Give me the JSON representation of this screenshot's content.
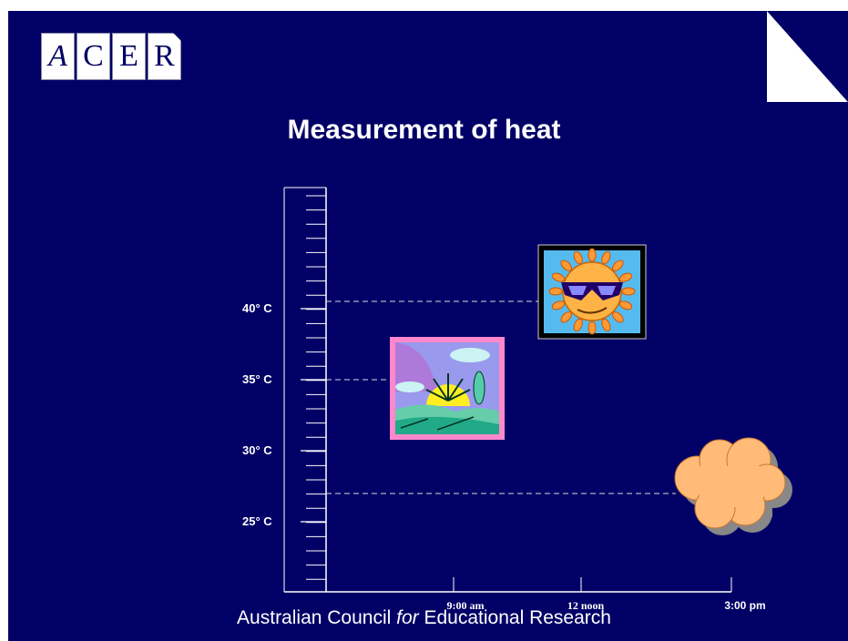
{
  "logo": {
    "letters": [
      "A",
      "C",
      "E",
      "R"
    ]
  },
  "title": "Measurement of heat",
  "temperature_labels": [
    "40° C",
    "35° C",
    "30° C",
    "25° C"
  ],
  "time_labels": [
    "9:00 am",
    "12 noon",
    "3:00 pm"
  ],
  "footer": {
    "prefix": "Australian Council ",
    "for_word": "for",
    "suffix": " Educational Research"
  },
  "colors": {
    "background": "#000066",
    "text": "#ffffff",
    "cloud": "#ffbb77",
    "cloud_shadow": "#888888",
    "sun_face": "#ffb347"
  },
  "icons": {
    "hot_sun": "sun-with-sunglasses-icon",
    "morning_sun": "sunrise-landscape-icon",
    "cloud": "cloud-icon"
  }
}
